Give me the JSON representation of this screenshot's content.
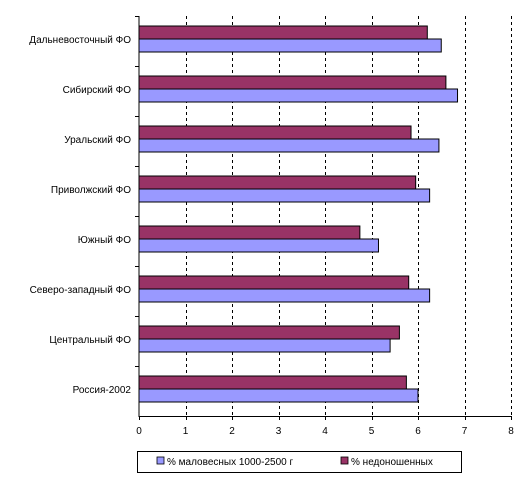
{
  "chart_data": {
    "type": "bar",
    "orientation": "horizontal",
    "categories": [
      "Дальневосточный ФО",
      "Сибирский ФО",
      "Уральский ФО",
      "Приволжский ФО",
      "Южный ФО",
      "Северо-западный ФО",
      "Центральный ФО",
      "Россия-2002"
    ],
    "series": [
      {
        "name": "% недоношенных",
        "color": "#993366",
        "values": [
          6.2,
          6.6,
          5.85,
          5.95,
          4.75,
          5.8,
          5.6,
          5.75
        ]
      },
      {
        "name": "% маловесных 1000-2500 г",
        "color": "#9999ff",
        "values": [
          6.5,
          6.85,
          6.45,
          6.25,
          5.15,
          6.25,
          5.4,
          6.0
        ]
      }
    ],
    "xlim": [
      0,
      8
    ],
    "xticks": [
      "0",
      "1",
      "2",
      "3",
      "4",
      "5",
      "6",
      "7",
      "8"
    ],
    "gridlines": "vertical dashed",
    "legend_position": "bottom",
    "legend_order": [
      "% маловесных 1000-2500 г",
      "% недоношенных"
    ]
  }
}
